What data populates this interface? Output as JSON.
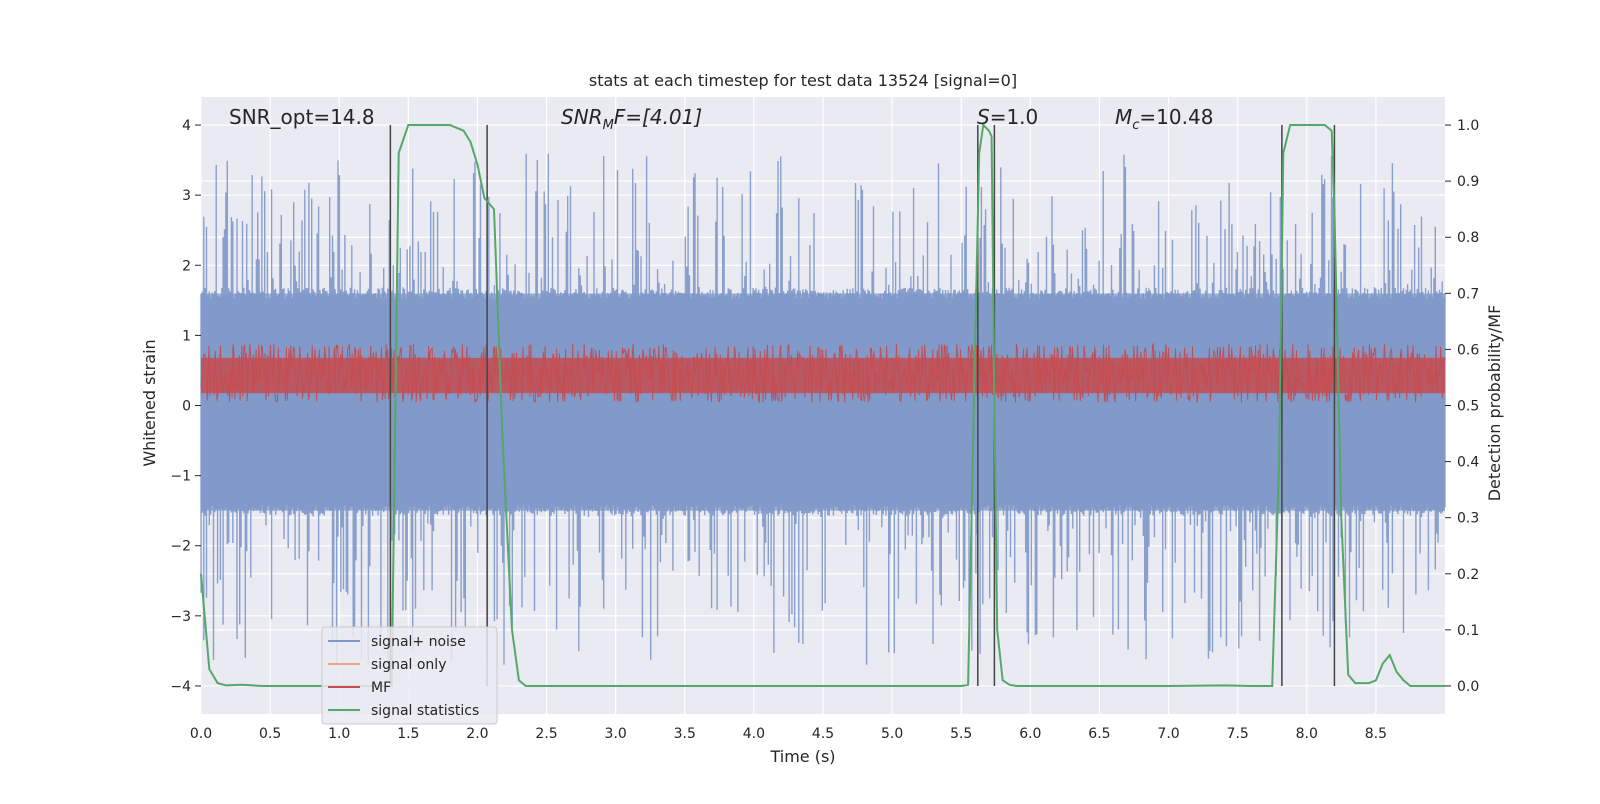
{
  "chart_data": {
    "type": "line",
    "title": "stats at each timestep for test data 13524 [signal=0]",
    "xlabel": "Time (s)",
    "ylabel": "Whitened strain",
    "ylabel_right": "Detection probability/MF",
    "xlim": [
      0,
      9
    ],
    "ylim": [
      -4.4,
      4.4
    ],
    "ylim_right": [
      -0.05,
      1.05
    ],
    "x_ticks": [
      0.0,
      0.5,
      1.0,
      1.5,
      2.0,
      2.5,
      3.0,
      3.5,
      4.0,
      4.5,
      5.0,
      5.5,
      6.0,
      6.5,
      7.0,
      7.5,
      8.0,
      8.5
    ],
    "x_tick_labels": [
      "0.0",
      "0.5",
      "1.0",
      "1.5",
      "2.0",
      "2.5",
      "3.0",
      "3.5",
      "4.0",
      "4.5",
      "5.0",
      "5.5",
      "6.0",
      "6.5",
      "7.0",
      "7.5",
      "8.0",
      "8.5"
    ],
    "y_ticks": [
      -4,
      -3,
      -2,
      -1,
      0,
      1,
      2,
      3,
      4
    ],
    "y_tick_labels": [
      "−4",
      "−3",
      "−2",
      "−1",
      "0",
      "1",
      "2",
      "3",
      "4"
    ],
    "y_ticks_right": [
      0.0,
      0.1,
      0.2,
      0.3,
      0.4,
      0.5,
      0.6,
      0.7,
      0.8,
      0.9,
      1.0
    ],
    "y_tick_labels_right": [
      "0.0",
      "0.1",
      "0.2",
      "0.3",
      "0.4",
      "0.5",
      "0.6",
      "0.7",
      "0.8",
      "0.9",
      "1.0"
    ],
    "annotations": {
      "snr_opt": "SNR_opt=14.8",
      "snr_mf_base": "SNR",
      "snr_mf_sub": "M",
      "snr_mf_rest": "F=[4.01]",
      "s_label": "S",
      "s_value": "=1.0",
      "mc_base": "M",
      "mc_sub": "c",
      "mc_value": "=10.48"
    },
    "legend": {
      "placement": "lower-left",
      "entries": [
        "signal+ noise",
        "signal only",
        "MF",
        "signal statistics"
      ]
    },
    "colors": {
      "noise": "#7f98c8",
      "signal_only": "#f0a58a",
      "mf": "#c44e52",
      "stats": "#55a868",
      "vlines": "#444444",
      "grid": "#ffffff",
      "background": "#eaeaf2"
    },
    "series": [
      {
        "name": "signal+ noise",
        "axis": "left",
        "style": "noise_band",
        "x_range": [
          0,
          9
        ],
        "typical_range": [
          -1.5,
          1.6
        ],
        "peak_range": [
          -3.7,
          3.6
        ]
      },
      {
        "name": "MF",
        "axis": "right",
        "style": "noise_band",
        "x_range": [
          0,
          9
        ],
        "typical_range": [
          0.51,
          0.6
        ],
        "peak_range": [
          0.505,
          0.61
        ]
      },
      {
        "name": "signal statistics",
        "axis": "right",
        "x": [
          0.0,
          0.06,
          0.12,
          0.18,
          0.3,
          0.45,
          0.6,
          0.9,
          1.2,
          1.35,
          1.38,
          1.43,
          1.5,
          1.6,
          1.8,
          1.9,
          1.95,
          2.0,
          2.05,
          2.12,
          2.18,
          2.25,
          2.3,
          2.35,
          2.4,
          2.5,
          3.0,
          4.0,
          5.0,
          5.5,
          5.55,
          5.6,
          5.63,
          5.66,
          5.7,
          5.72,
          5.74,
          5.76,
          5.8,
          5.85,
          5.9,
          6.0,
          7.0,
          7.4,
          7.6,
          7.75,
          7.8,
          7.83,
          7.88,
          7.95,
          8.05,
          8.13,
          8.18,
          8.2,
          8.25,
          8.3,
          8.35,
          8.45,
          8.5,
          8.55,
          8.6,
          8.65,
          8.7,
          8.75,
          8.8,
          9.0
        ],
        "y": [
          0.2,
          0.03,
          0.005,
          0.001,
          0.002,
          0.0,
          0.0,
          0.0,
          0.0,
          0.0,
          0.0,
          0.95,
          1.0,
          1.0,
          1.0,
          0.99,
          0.97,
          0.93,
          0.87,
          0.85,
          0.45,
          0.1,
          0.01,
          0.0,
          0.0,
          0.0,
          0.0,
          0.0,
          0.0,
          0.0,
          0.002,
          0.6,
          0.95,
          1.0,
          0.99,
          0.98,
          0.5,
          0.1,
          0.01,
          0.002,
          0.0,
          0.0,
          0.0,
          0.001,
          0.0,
          0.0,
          0.4,
          0.95,
          1.0,
          1.0,
          1.0,
          1.0,
          0.99,
          0.85,
          0.3,
          0.02,
          0.005,
          0.005,
          0.01,
          0.04,
          0.055,
          0.025,
          0.01,
          0.0,
          0.0,
          0.0
        ]
      }
    ],
    "vlines": [
      {
        "x": 1.37,
        "y_range": [
          -4.0,
          4.0
        ]
      },
      {
        "x": 2.07,
        "y_range": [
          -4.0,
          4.0
        ]
      },
      {
        "x": 5.62,
        "y_range": [
          -4.0,
          4.0
        ]
      },
      {
        "x": 5.74,
        "y_range": [
          -4.0,
          4.0
        ]
      },
      {
        "x": 7.82,
        "y_range": [
          -4.0,
          4.0
        ]
      },
      {
        "x": 8.2,
        "y_range": [
          -4.0,
          4.0
        ]
      }
    ]
  }
}
